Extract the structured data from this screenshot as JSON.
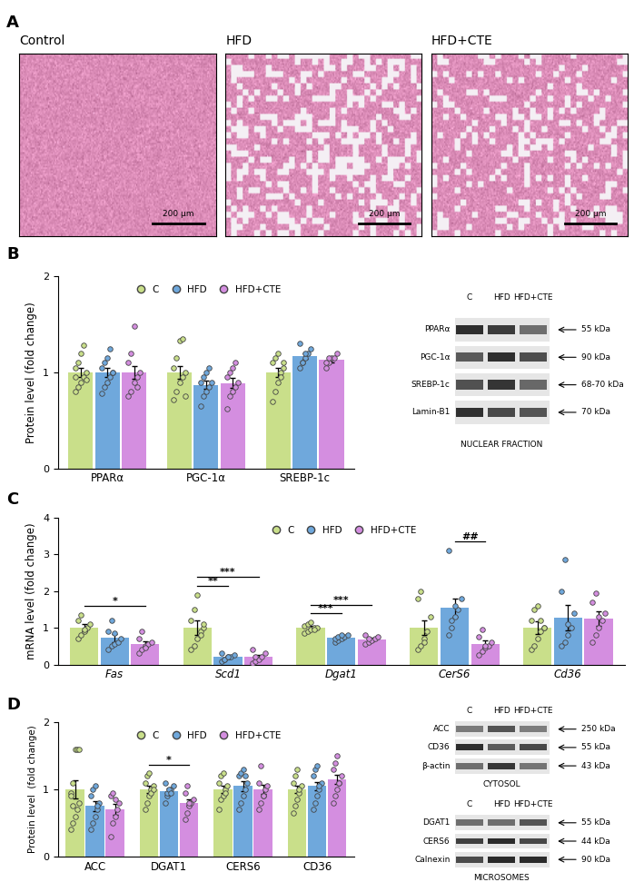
{
  "panel_labels": [
    "A",
    "B",
    "C",
    "D"
  ],
  "histology": {
    "panels": [
      {
        "title": "Control",
        "scale_bar": "200 µm"
      },
      {
        "title": "HFD",
        "scale_bar": "200 µm"
      },
      {
        "title": "HFD+CTE",
        "scale_bar": "200 µm"
      }
    ]
  },
  "chart_data": [
    {
      "type": "bar",
      "ylabel": "Protein level (fold change)",
      "categories": [
        "PPARα",
        "PGC-1α",
        "SREBP-1c"
      ],
      "ylim": [
        0,
        2
      ],
      "yticks": [
        0,
        1,
        2
      ],
      "legend": "upper center",
      "series": [
        {
          "name": "C",
          "color": "#c9df8a",
          "values": [
            1.0,
            1.0,
            1.0
          ],
          "errors": [
            0.05,
            0.07,
            0.05
          ],
          "points": [
            [
              0.8,
              0.85,
              0.9,
              0.95,
              1.0,
              1.05,
              1.1,
              1.2,
              1.28,
              0.92,
              0.95
            ],
            [
              0.72,
              0.8,
              0.9,
              0.95,
              1.0,
              1.05,
              1.15,
              1.33,
              1.35,
              0.75
            ],
            [
              0.7,
              0.8,
              0.9,
              1.0,
              1.05,
              1.1,
              1.15,
              1.2,
              0.95,
              1.1
            ]
          ]
        },
        {
          "name": "HFD",
          "color": "#6fa8dc",
          "values": [
            1.0,
            0.87,
            1.17
          ],
          "errors": [
            0.05,
            0.04,
            0.03
          ],
          "points": [
            [
              0.78,
              0.85,
              0.9,
              0.95,
              1.0,
              1.05,
              1.1,
              1.15,
              1.25,
              1.0
            ],
            [
              0.65,
              0.75,
              0.8,
              0.85,
              0.9,
              0.9,
              0.95,
              1.0,
              1.05
            ],
            [
              1.05,
              1.1,
              1.15,
              1.2,
              1.25,
              1.3,
              1.1,
              1.2
            ]
          ]
        },
        {
          "name": "HFD+CTE",
          "color": "#d48ee0",
          "values": [
            1.0,
            0.89,
            1.13
          ],
          "errors": [
            0.07,
            0.05,
            0.03
          ],
          "points": [
            [
              0.75,
              0.8,
              0.9,
              0.95,
              1.0,
              1.1,
              1.2,
              1.48,
              0.85
            ],
            [
              0.62,
              0.75,
              0.8,
              0.85,
              0.9,
              0.95,
              1.0,
              1.05,
              1.1
            ],
            [
              1.05,
              1.1,
              1.15,
              1.15,
              1.2,
              1.1,
              1.15
            ]
          ]
        }
      ],
      "significance": []
    },
    {
      "type": "bar",
      "ylabel": "mRNA level (fold change)",
      "categories": [
        "Fas",
        "Scd1",
        "Dgat1",
        "CerS6",
        "Cd36"
      ],
      "ylim": [
        0,
        4
      ],
      "yticks": [
        0,
        1,
        2,
        3,
        4
      ],
      "legend": "upper center",
      "series": [
        {
          "name": "C",
          "color": "#c9df8a",
          "values": [
            1.0,
            1.0,
            1.0,
            1.0,
            1.0
          ],
          "errors": [
            0.1,
            0.2,
            0.04,
            0.2,
            0.18
          ],
          "points": [
            [
              0.7,
              0.8,
              0.9,
              1.0,
              1.1,
              1.2,
              1.35,
              0.95
            ],
            [
              0.4,
              0.5,
              0.7,
              0.9,
              1.0,
              1.2,
              1.5,
              1.9,
              0.8,
              1.1
            ],
            [
              0.85,
              0.9,
              0.95,
              1.0,
              1.0,
              1.05,
              1.1,
              1.15,
              0.95
            ],
            [
              0.4,
              0.5,
              0.7,
              0.9,
              1.3,
              1.8,
              2.0,
              0.6
            ],
            [
              0.4,
              0.5,
              0.7,
              0.9,
              1.0,
              1.2,
              1.5,
              1.6,
              1.2,
              1.0
            ]
          ]
        },
        {
          "name": "HFD",
          "color": "#6fa8dc",
          "values": [
            0.72,
            0.2,
            0.72,
            1.55,
            1.28
          ],
          "errors": [
            0.12,
            0.04,
            0.04,
            0.25,
            0.35
          ],
          "points": [
            [
              0.4,
              0.5,
              0.55,
              0.6,
              0.7,
              0.9,
              1.2,
              0.85
            ],
            [
              0.1,
              0.15,
              0.2,
              0.2,
              0.25,
              0.3,
              0.15,
              0.2
            ],
            [
              0.6,
              0.65,
              0.7,
              0.75,
              0.8,
              0.7,
              0.75,
              0.8
            ],
            [
              0.8,
              1.0,
              1.3,
              1.5,
              1.8,
              3.1,
              1.2,
              1.6
            ],
            [
              0.5,
              0.6,
              0.8,
              1.0,
              1.4,
              2.0,
              2.85,
              1.1
            ]
          ]
        },
        {
          "name": "HFD+CTE",
          "color": "#d48ee0",
          "values": [
            0.55,
            0.2,
            0.68,
            0.55,
            1.25
          ],
          "errors": [
            0.08,
            0.05,
            0.05,
            0.1,
            0.2
          ],
          "points": [
            [
              0.3,
              0.4,
              0.5,
              0.55,
              0.6,
              0.7,
              0.9,
              0.45
            ],
            [
              0.05,
              0.1,
              0.15,
              0.2,
              0.3,
              0.4,
              0.2
            ],
            [
              0.55,
              0.6,
              0.65,
              0.7,
              0.75,
              0.8,
              0.7
            ],
            [
              0.25,
              0.35,
              0.45,
              0.5,
              0.6,
              0.75,
              0.95,
              0.5
            ],
            [
              0.6,
              0.8,
              1.0,
              1.2,
              1.4,
              1.7,
              1.95,
              1.3
            ]
          ]
        }
      ],
      "significance": [
        {
          "category": "Fas",
          "from": "C",
          "to": "HFD+CTE",
          "label": "*"
        },
        {
          "category": "Scd1",
          "from": "C",
          "to": "HFD",
          "label": "**"
        },
        {
          "category": "Scd1",
          "from": "C",
          "to": "HFD+CTE",
          "label": "***"
        },
        {
          "category": "Dgat1",
          "from": "C",
          "to": "HFD",
          "label": "***"
        },
        {
          "category": "Dgat1",
          "from": "C",
          "to": "HFD+CTE",
          "label": "***"
        },
        {
          "category": "CerS6",
          "from": "HFD",
          "to": "HFD+CTE",
          "label": "##"
        }
      ]
    },
    {
      "type": "bar",
      "ylabel": "Protein level  (fold change)",
      "categories": [
        "ACC",
        "DGAT1",
        "CERS6",
        "CD36"
      ],
      "ylim": [
        0,
        2
      ],
      "yticks": [
        0,
        1,
        2
      ],
      "legend": "upper center",
      "series": [
        {
          "name": "C",
          "color": "#c9df8a",
          "values": [
            1.0,
            1.0,
            1.0,
            1.0
          ],
          "errors": [
            0.13,
            0.05,
            0.05,
            0.06
          ],
          "points": [
            [
              0.4,
              0.5,
              0.6,
              0.7,
              0.8,
              0.95,
              1.1,
              1.6,
              1.6,
              1.6,
              0.9,
              0.75
            ],
            [
              0.7,
              0.8,
              0.9,
              1.0,
              1.05,
              1.1,
              1.2,
              1.25,
              0.95,
              1.0
            ],
            [
              0.7,
              0.85,
              0.9,
              1.0,
              1.05,
              1.1,
              1.2,
              1.25,
              0.95
            ],
            [
              0.65,
              0.75,
              0.85,
              0.95,
              1.05,
              1.1,
              1.2,
              1.3,
              1.0
            ]
          ]
        },
        {
          "name": "HFD",
          "color": "#6fa8dc",
          "values": [
            0.75,
            0.98,
            1.05,
            1.05
          ],
          "errors": [
            0.07,
            0.03,
            0.07,
            0.06
          ],
          "points": [
            [
              0.4,
              0.5,
              0.6,
              0.7,
              0.8,
              0.9,
              1.0,
              1.05,
              0.75
            ],
            [
              0.8,
              0.9,
              0.95,
              1.0,
              1.05,
              1.1,
              0.95,
              1.0,
              0.95
            ],
            [
              0.7,
              0.8,
              0.9,
              1.0,
              1.1,
              1.2,
              1.25,
              1.3,
              1.2
            ],
            [
              0.7,
              0.8,
              0.9,
              1.0,
              1.1,
              1.2,
              1.3,
              1.35,
              1.05
            ]
          ]
        },
        {
          "name": "HFD+CTE",
          "color": "#d48ee0",
          "values": [
            0.7,
            0.8,
            1.0,
            1.15
          ],
          "errors": [
            0.08,
            0.05,
            0.07,
            0.07
          ],
          "points": [
            [
              0.3,
              0.5,
              0.6,
              0.7,
              0.8,
              0.9,
              0.95,
              0.85
            ],
            [
              0.55,
              0.65,
              0.75,
              0.8,
              0.85,
              0.95,
              1.05,
              0.8
            ],
            [
              0.7,
              0.8,
              0.9,
              1.0,
              1.05,
              1.1,
              1.35,
              0.9
            ],
            [
              0.8,
              0.9,
              1.0,
              1.1,
              1.2,
              1.3,
              1.4,
              1.5,
              1.1
            ]
          ]
        }
      ],
      "significance": [
        {
          "category": "DGAT1",
          "from": "C",
          "to": "HFD+CTE",
          "label": "*"
        }
      ]
    }
  ],
  "blots": [
    {
      "lanes": [
        "C",
        "HFD",
        "HFD+CTE"
      ],
      "rows": [
        {
          "protein": "PPARα",
          "size": "55 kDa"
        },
        {
          "protein": "PGC-1α",
          "size": "90 kDa"
        },
        {
          "protein": "SREBP-1c",
          "size": "68-70 kDa"
        },
        {
          "protein": "Lamin-B1",
          "size": "70 kDa"
        }
      ],
      "caption": "NUCLEAR FRACTION"
    },
    {
      "lanes": [
        "C",
        "HFD",
        "HFD+CTE"
      ],
      "rows": [
        {
          "protein": "ACC",
          "size": "250 kDa"
        },
        {
          "protein": "CD36",
          "size": "55 kDa"
        },
        {
          "protein": "β-actin",
          "size": "43 kDa"
        }
      ],
      "caption": "CYTOSOL"
    },
    {
      "lanes": [
        "C",
        "HFD",
        "HFD+CTE"
      ],
      "rows": [
        {
          "protein": "DGAT1",
          "size": "55 kDa"
        },
        {
          "protein": "CERS6",
          "size": "44 kDa"
        },
        {
          "protein": "Calnexin",
          "size": "90 kDa"
        }
      ],
      "caption": "MICROSOMES"
    }
  ]
}
